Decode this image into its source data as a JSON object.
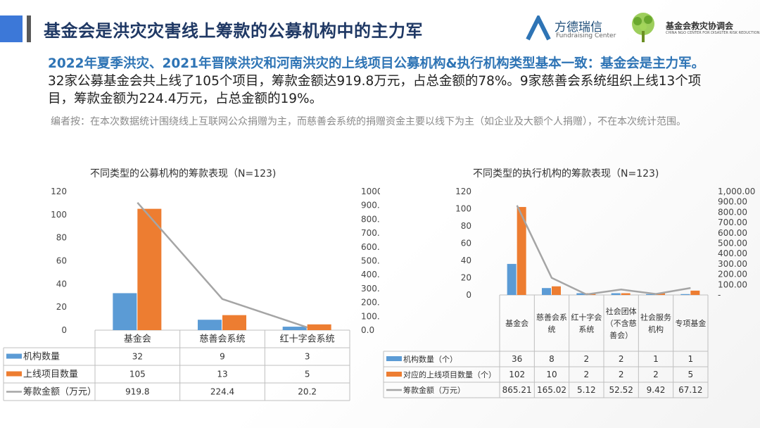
{
  "header": {
    "title": "基金会是洪灾灾害线上筹款的公募机构中的主力军",
    "logo1_name": "方德瑞信",
    "logo1_sub": "Fundraising Center",
    "logo2_name": "基金会救灾协调会",
    "logo2_sub": "CHINA NGO CENTER FOR DISASTER RISK REDUCTION"
  },
  "lead": {
    "highlight": "2022年夏季洪灾、2021年晋陕洪灾和河南洪灾的上线项目公募机构&执行机构类型基本一致：基金会是主力军。",
    "rest": "32家公募基金会共上线了105个项目，筹款金额达919.8万元，占总金额的78%。9家慈善会系统组织上线13个项目，筹款金额为224.4万元，占总金额的19%。"
  },
  "note": "编者按：在本次数据统计围绕线上互联网公众捐赠为主，而慈善会系统的捐赠资金主要以线下为主（如企业及大额个人捐赠），不在本次统计范围。",
  "colors": {
    "blue": "#5b9bd5",
    "orange": "#ed7d31",
    "gray": "#a5a5a5"
  },
  "chart_data": [
    {
      "type": "bar",
      "title": "不同类型的公募机构的筹款表现（N=123)",
      "categories": [
        "基金会",
        "慈善会系统",
        "红十字会系统"
      ],
      "series": [
        {
          "name": "机构数量",
          "kind": "bar",
          "axis": "left",
          "values": [
            32,
            9,
            3
          ]
        },
        {
          "name": "上线项目数量",
          "kind": "bar",
          "axis": "left",
          "values": [
            105,
            13,
            5
          ]
        },
        {
          "name": "筹款金额（万元）",
          "kind": "line",
          "axis": "right",
          "values": [
            919.8,
            224.4,
            20.2
          ]
        }
      ],
      "ylim": [
        0,
        120
      ],
      "ylim_right": [
        0,
        1000
      ],
      "y_ticks": [
        "0",
        "20",
        "40",
        "60",
        "80",
        "100",
        "120"
      ],
      "y2_ticks": [
        "0.0",
        "100.0",
        "200.0",
        "300.0",
        "400.0",
        "500.0",
        "600.0",
        "700.0",
        "800.0",
        "900.0",
        "1000.0"
      ],
      "table": [
        [
          "32",
          "9",
          "3"
        ],
        [
          "105",
          "13",
          "5"
        ],
        [
          "919.8",
          "224.4",
          "20.2"
        ]
      ]
    },
    {
      "type": "bar",
      "title": "不同类型的执行机构的筹款表现（N=123)",
      "categories": [
        "基金会",
        "慈善会系统",
        "红十字会系统",
        "社会团体（不含慈善会）",
        "社会服务机构",
        "专项基金"
      ],
      "series": [
        {
          "name": "机构数量（个）",
          "kind": "bar",
          "axis": "left",
          "values": [
            36,
            8,
            2,
            2,
            1,
            1
          ]
        },
        {
          "name": "对应的上线项目数量（个）",
          "kind": "bar",
          "axis": "left",
          "values": [
            102,
            10,
            2,
            2,
            2,
            5
          ]
        },
        {
          "name": "筹款金额（万元）",
          "kind": "line",
          "axis": "right",
          "values": [
            865.21,
            165.02,
            5.12,
            52.52,
            9.42,
            67.12
          ]
        }
      ],
      "ylim": [
        0,
        120
      ],
      "ylim_right": [
        0,
        1000
      ],
      "y_ticks": [
        "0",
        "20",
        "40",
        "60",
        "80",
        "100",
        "120"
      ],
      "y2_ticks": [
        "-",
        "100.00",
        "200.00",
        "300.00",
        "400.00",
        "500.00",
        "600.00",
        "700.00",
        "800.00",
        "900.00",
        "1,000.00"
      ],
      "table": [
        [
          "36",
          "8",
          "2",
          "2",
          "1",
          "1"
        ],
        [
          "102",
          "10",
          "2",
          "2",
          "2",
          "5"
        ],
        [
          "865.21",
          "165.02",
          "5.12",
          "52.52",
          "9.42",
          "67.12"
        ]
      ]
    }
  ]
}
